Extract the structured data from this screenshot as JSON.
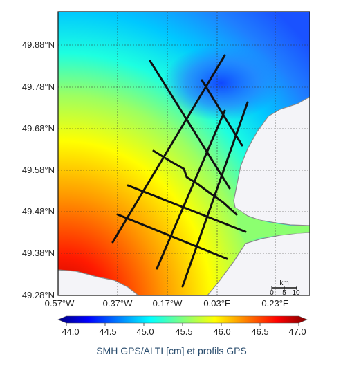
{
  "map": {
    "lat_labels": [
      "49.88°N",
      "49.78°N",
      "49.68°N",
      "49.58°N",
      "49.48°N",
      "49.38°N",
      "49.28°N"
    ],
    "lon_labels": [
      "0.57°W",
      "0.37°W",
      "0.17°W",
      "0.03°E",
      "0.23°E"
    ],
    "land_color": "#f4f4f8",
    "coast_color": "#8a8a8a",
    "profile_color": "#111111"
  },
  "scale_bar": {
    "unit": "km",
    "ticks": [
      "0",
      "5",
      "10"
    ]
  },
  "colorbar": {
    "ticks": [
      "44.0",
      "44.5",
      "45.0",
      "45.5",
      "46.0",
      "46.5",
      "47.0"
    ],
    "colormap": [
      "#00007f",
      "#0000ff",
      "#007fff",
      "#00ffff",
      "#7fff7f",
      "#ffff00",
      "#ff7f00",
      "#ff0000",
      "#7f0000"
    ]
  },
  "caption": "SMH GPS/ALTI [cm] et profils GPS"
}
